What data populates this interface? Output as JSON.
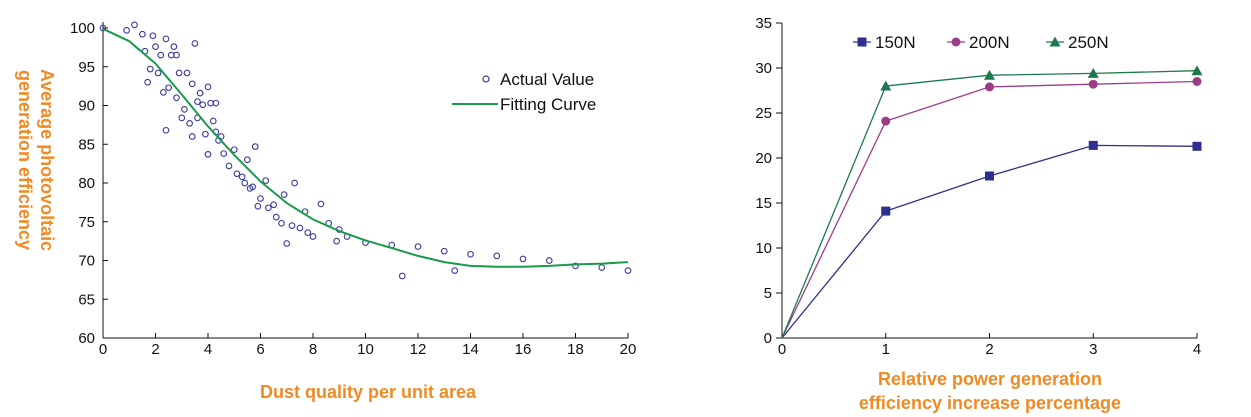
{
  "chart_data": [
    {
      "type": "scatter",
      "ylabel_lines": [
        "Average photovoltaic",
        "generation efficiency"
      ],
      "xlabel": "Dust quality per unit area",
      "xlim": [
        0,
        20
      ],
      "ylim": [
        60,
        100
      ],
      "x_ticks": [
        0,
        2,
        4,
        6,
        8,
        10,
        12,
        14,
        16,
        18,
        20
      ],
      "y_ticks": [
        60,
        65,
        70,
        75,
        80,
        85,
        90,
        95,
        100
      ],
      "legend_position": "top-right",
      "grid": false,
      "series": [
        {
          "name": "Actual Value",
          "kind": "scatter",
          "color": "#3a3a9e",
          "points": [
            [
              0,
              100
            ],
            [
              0.9,
              99.7
            ],
            [
              1.2,
              100.4
            ],
            [
              1.5,
              99.2
            ],
            [
              1.6,
              97.0
            ],
            [
              1.7,
              93.0
            ],
            [
              1.8,
              94.7
            ],
            [
              1.9,
              99.0
            ],
            [
              2.0,
              97.6
            ],
            [
              2.1,
              94.2
            ],
            [
              2.2,
              96.5
            ],
            [
              2.3,
              91.7
            ],
            [
              2.4,
              98.6
            ],
            [
              2.4,
              86.8
            ],
            [
              2.5,
              92.3
            ],
            [
              2.6,
              96.5
            ],
            [
              2.7,
              97.6
            ],
            [
              2.8,
              91.0
            ],
            [
              2.8,
              96.5
            ],
            [
              2.9,
              94.2
            ],
            [
              3.0,
              88.4
            ],
            [
              3.1,
              89.5
            ],
            [
              3.2,
              94.2
            ],
            [
              3.3,
              87.7
            ],
            [
              3.4,
              92.8
            ],
            [
              3.4,
              86.0
            ],
            [
              3.5,
              98.0
            ],
            [
              3.6,
              88.4
            ],
            [
              3.6,
              90.5
            ],
            [
              3.7,
              91.6
            ],
            [
              3.8,
              90.1
            ],
            [
              3.9,
              86.3
            ],
            [
              4.0,
              92.4
            ],
            [
              4.0,
              83.7
            ],
            [
              4.1,
              90.3
            ],
            [
              4.2,
              88.0
            ],
            [
              4.3,
              86.6
            ],
            [
              4.3,
              90.3
            ],
            [
              4.4,
              85.5
            ],
            [
              4.5,
              86.0
            ],
            [
              4.6,
              83.8
            ],
            [
              4.8,
              82.2
            ],
            [
              5.0,
              84.3
            ],
            [
              5.1,
              81.2
            ],
            [
              5.3,
              80.8
            ],
            [
              5.4,
              80.0
            ],
            [
              5.5,
              83.0
            ],
            [
              5.6,
              79.3
            ],
            [
              5.7,
              79.5
            ],
            [
              5.8,
              84.7
            ],
            [
              5.9,
              77.0
            ],
            [
              6.0,
              78.0
            ],
            [
              6.2,
              80.3
            ],
            [
              6.3,
              76.8
            ],
            [
              6.5,
              77.2
            ],
            [
              6.6,
              75.6
            ],
            [
              6.8,
              74.8
            ],
            [
              6.9,
              78.5
            ],
            [
              7.0,
              72.2
            ],
            [
              7.2,
              74.5
            ],
            [
              7.3,
              80.0
            ],
            [
              7.5,
              74.2
            ],
            [
              7.7,
              76.3
            ],
            [
              7.8,
              73.6
            ],
            [
              8.0,
              73.1
            ],
            [
              8.3,
              77.3
            ],
            [
              8.6,
              74.8
            ],
            [
              8.9,
              72.5
            ],
            [
              9.0,
              74.0
            ],
            [
              9.3,
              73.1
            ],
            [
              10.0,
              72.3
            ],
            [
              11.0,
              72.0
            ],
            [
              11.4,
              68.0
            ],
            [
              12.0,
              71.8
            ],
            [
              13.0,
              71.2
            ],
            [
              13.4,
              68.7
            ],
            [
              14.0,
              70.8
            ],
            [
              15.0,
              70.6
            ],
            [
              16.0,
              70.2
            ],
            [
              17.0,
              70.0
            ],
            [
              18.0,
              69.3
            ],
            [
              19.0,
              69.1
            ],
            [
              20.0,
              68.7
            ]
          ]
        },
        {
          "name": "Fitting Curve",
          "kind": "line",
          "color": "#1a9a4a",
          "points": [
            [
              0,
              99.9
            ],
            [
              1,
              98.3
            ],
            [
              2,
              95.4
            ],
            [
              3,
              91.4
            ],
            [
              4,
              87.3
            ],
            [
              5,
              83.6
            ],
            [
              6,
              80.2
            ],
            [
              7,
              77.4
            ],
            [
              8,
              75.3
            ],
            [
              9,
              73.8
            ],
            [
              10,
              72.6
            ],
            [
              11,
              71.6
            ],
            [
              12,
              70.6
            ],
            [
              13,
              69.8
            ],
            [
              14,
              69.3
            ],
            [
              15,
              69.2
            ],
            [
              16,
              69.2
            ],
            [
              17,
              69.3
            ],
            [
              18,
              69.5
            ],
            [
              19,
              69.6
            ],
            [
              20,
              69.8
            ]
          ]
        }
      ]
    },
    {
      "type": "line",
      "xlabel_lines": [
        "Relative power generation",
        "efficiency increase percentage"
      ],
      "xlim": [
        0,
        4
      ],
      "ylim": [
        0,
        35
      ],
      "x_ticks": [
        0,
        1,
        2,
        3,
        4
      ],
      "y_ticks": [
        0,
        5,
        10,
        15,
        20,
        25,
        30,
        35
      ],
      "legend_position": "top",
      "grid": false,
      "x": [
        0,
        1,
        2,
        3,
        4
      ],
      "series": [
        {
          "name": "150N",
          "color": "#2e2f8e",
          "marker": "square",
          "values": [
            0,
            14.1,
            18.0,
            21.4,
            21.3
          ]
        },
        {
          "name": "200N",
          "color": "#9c3d8a",
          "marker": "circle",
          "values": [
            0,
            24.1,
            27.9,
            28.2,
            28.5
          ]
        },
        {
          "name": "250N",
          "color": "#1d7a4c",
          "marker": "triangle",
          "values": [
            0,
            28.0,
            29.2,
            29.4,
            29.7
          ]
        }
      ]
    }
  ]
}
